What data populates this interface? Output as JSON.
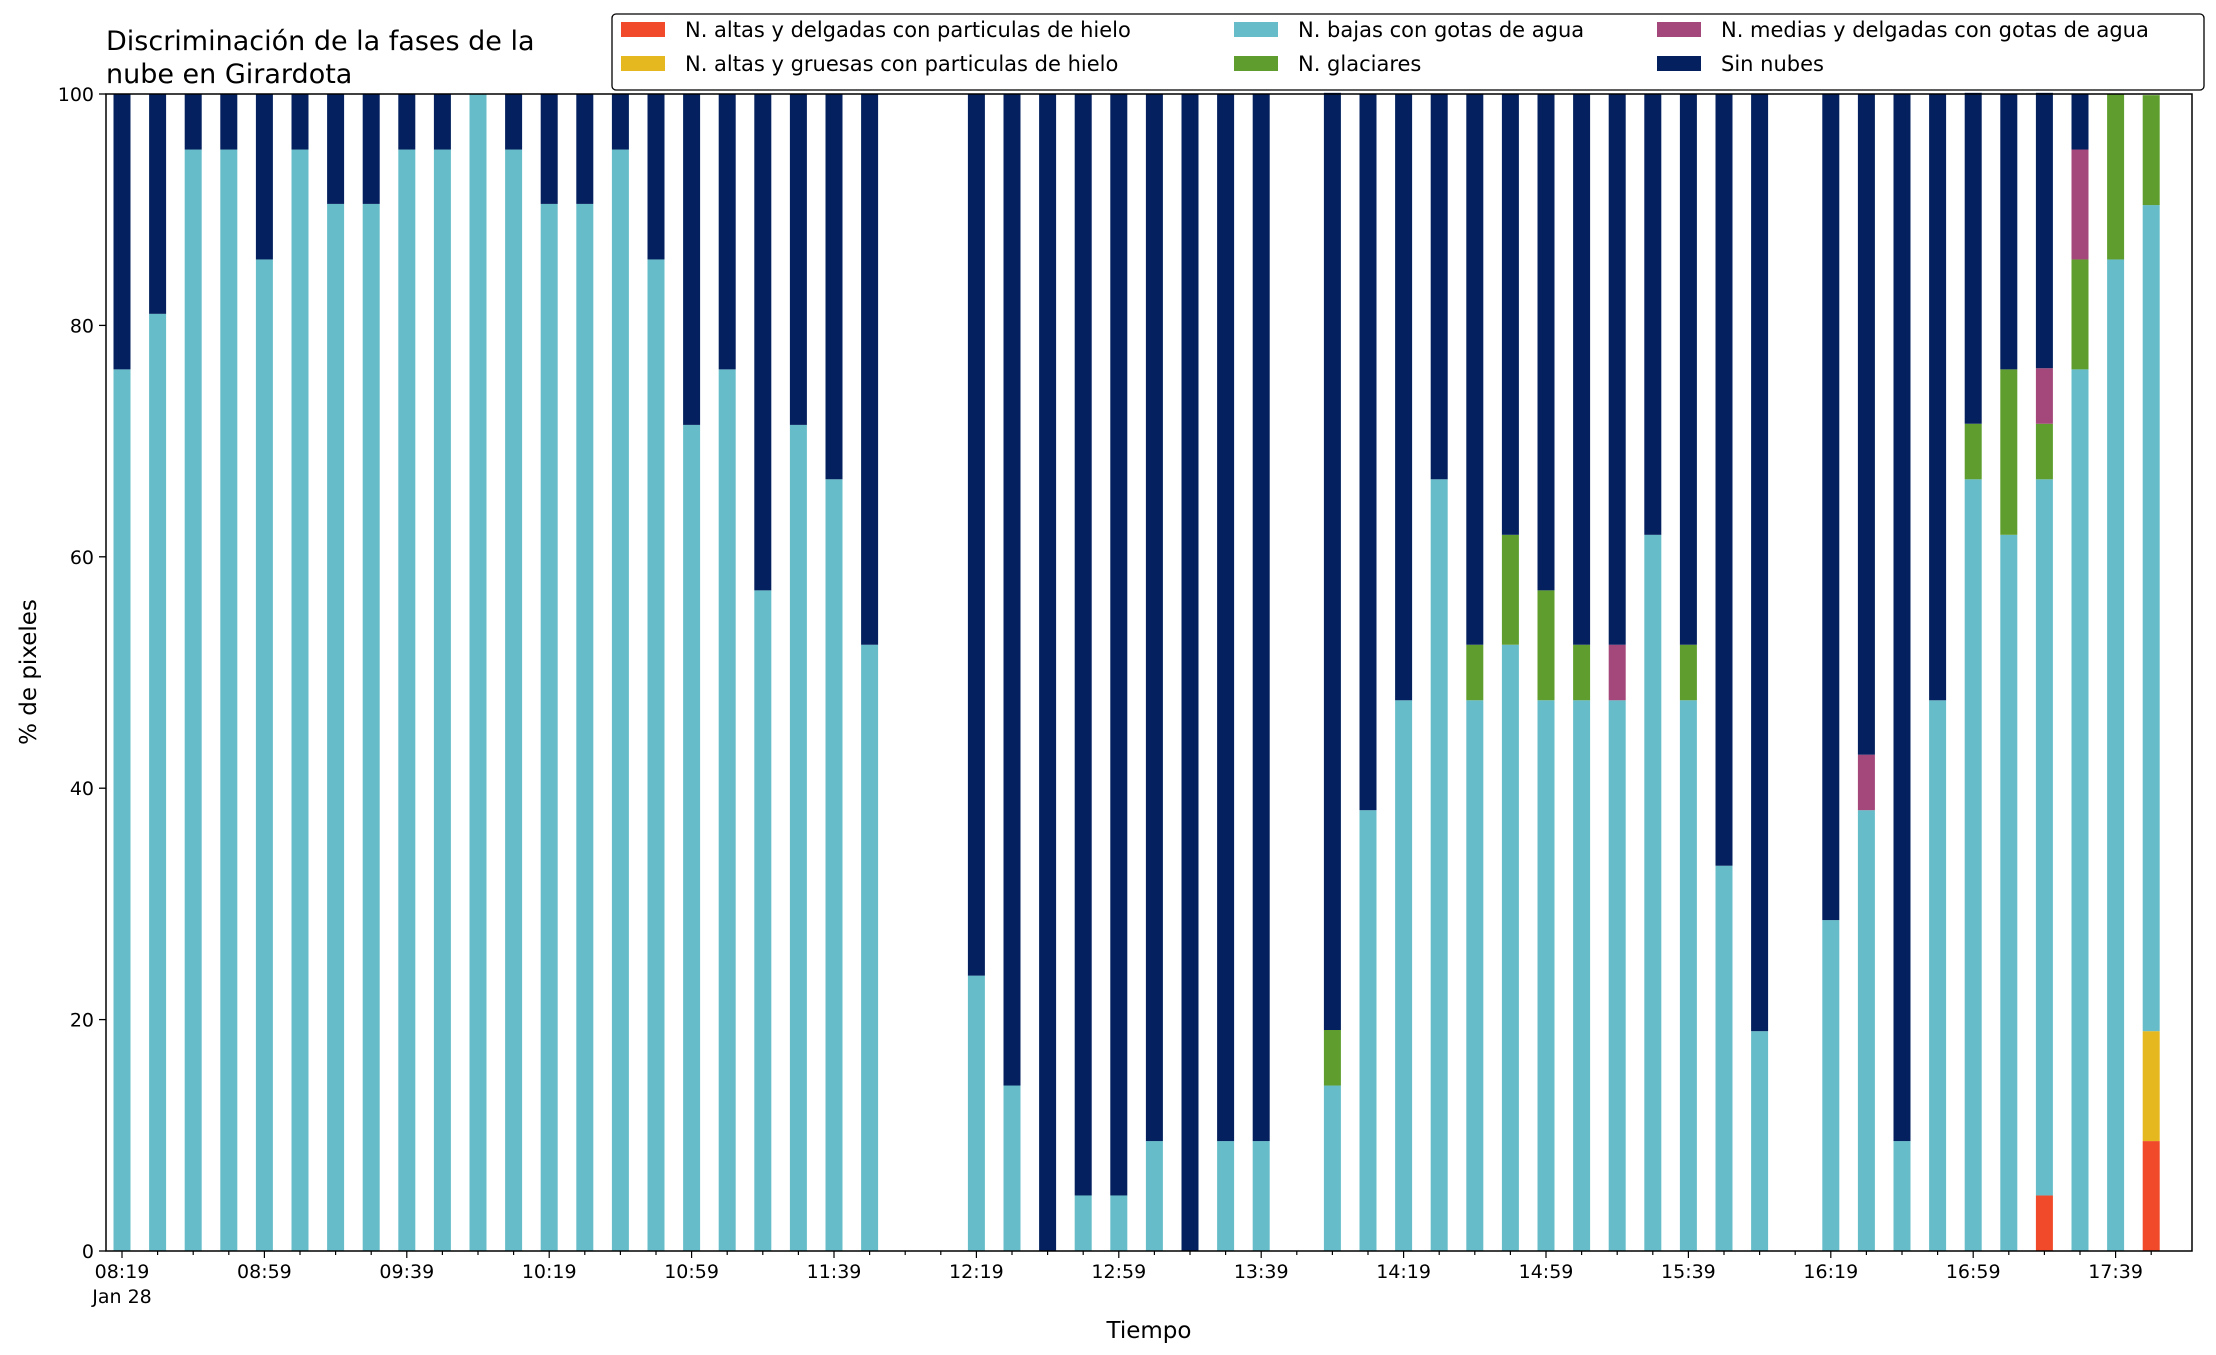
{
  "chart_data": {
    "type": "bar",
    "stacked": true,
    "title_lines": [
      "Discriminación de la fases de la",
      "nube en Girardota"
    ],
    "xlabel": "Tiempo",
    "ylabel": "% de pixeles",
    "ylim": [
      0,
      100
    ],
    "yticks": [
      0,
      20,
      40,
      60,
      80,
      100
    ],
    "grid": false,
    "legend_position": "top-right",
    "x_date_label": "Jan 28",
    "x_tick_labels": [
      {
        "index": 0,
        "label": "08:19"
      },
      {
        "index": 4,
        "label": "08:59"
      },
      {
        "index": 8,
        "label": "09:39"
      },
      {
        "index": 12,
        "label": "10:19"
      },
      {
        "index": 16,
        "label": "10:59"
      },
      {
        "index": 20,
        "label": "11:39"
      },
      {
        "index": 24,
        "label": "12:19"
      },
      {
        "index": 28,
        "label": "12:59"
      },
      {
        "index": 32,
        "label": "13:39"
      },
      {
        "index": 36,
        "label": "14:19"
      },
      {
        "index": 40,
        "label": "14:59"
      },
      {
        "index": 44,
        "label": "15:39"
      },
      {
        "index": 48,
        "label": "16:19"
      },
      {
        "index": 52,
        "label": "16:59"
      },
      {
        "index": 56,
        "label": "17:39"
      }
    ],
    "categories": [
      "08:19",
      "08:29",
      "08:39",
      "08:49",
      "08:59",
      "09:09",
      "09:19",
      "09:29",
      "09:39",
      "09:49",
      "09:59",
      "10:09",
      "10:19",
      "10:29",
      "10:39",
      "10:49",
      "10:59",
      "11:09",
      "11:19",
      "11:29",
      "11:39",
      "11:49",
      "11:59",
      "12:09",
      "12:19",
      "12:29",
      "12:39",
      "12:49",
      "12:59",
      "13:09",
      "13:19",
      "13:29",
      "13:39",
      "13:49",
      "13:59",
      "14:09",
      "14:19",
      "14:29",
      "14:39",
      "14:49",
      "14:59",
      "15:09",
      "15:19",
      "15:29",
      "15:39",
      "15:49",
      "15:59",
      "16:09",
      "16:19",
      "16:29",
      "16:39",
      "16:49",
      "16:59",
      "17:09",
      "17:19",
      "17:29",
      "17:39",
      "17:49"
    ],
    "series": [
      {
        "name": "N. altas y delgadas con particulas de hielo",
        "color": "#f04a2a",
        "values": [
          0,
          0,
          0,
          0,
          0,
          0,
          0,
          0,
          0,
          0,
          0,
          0,
          0,
          0,
          0,
          0,
          0,
          0,
          0,
          0,
          0,
          0,
          null,
          null,
          0,
          0,
          0,
          0,
          0,
          0,
          0,
          0,
          0,
          null,
          0,
          0,
          0,
          0,
          0,
          0,
          0,
          0,
          0,
          0,
          0,
          0,
          0,
          null,
          0,
          0,
          0,
          0,
          0,
          0,
          4.8,
          0,
          0,
          9.5
        ]
      },
      {
        "name": "N. altas y gruesas con particulas de hielo",
        "color": "#e6b81f",
        "values": [
          0,
          0,
          0,
          0,
          0,
          0,
          0,
          0,
          0,
          0,
          0,
          0,
          0,
          0,
          0,
          0,
          0,
          0,
          0,
          0,
          0,
          0,
          null,
          null,
          0,
          0,
          0,
          0,
          0,
          0,
          0,
          0,
          0,
          null,
          0,
          0,
          0,
          0,
          0,
          0,
          0,
          0,
          0,
          0,
          0,
          0,
          0,
          null,
          0,
          0,
          0,
          0,
          0,
          0,
          0,
          0,
          0,
          9.5
        ]
      },
      {
        "name": "N. bajas con gotas de agua",
        "color": "#66bdc9",
        "values": [
          76.2,
          81.0,
          95.2,
          95.2,
          85.7,
          95.2,
          90.5,
          90.5,
          95.2,
          95.2,
          100,
          95.2,
          90.5,
          90.5,
          95.2,
          85.7,
          71.4,
          76.2,
          57.1,
          71.4,
          66.7,
          52.4,
          null,
          null,
          23.8,
          14.3,
          0,
          4.8,
          4.8,
          9.5,
          0,
          9.5,
          9.5,
          null,
          14.3,
          38.1,
          47.6,
          66.7,
          47.6,
          52.4,
          47.6,
          47.6,
          47.6,
          61.9,
          47.6,
          33.3,
          19.0,
          null,
          28.6,
          38.1,
          9.5,
          47.6,
          66.7,
          61.9,
          61.9,
          76.2,
          85.7,
          71.4
        ]
      },
      {
        "name": "N. glaciares",
        "color": "#5f9e2e",
        "values": [
          0,
          0,
          0,
          0,
          0,
          0,
          0,
          0,
          0,
          0,
          0,
          0,
          0,
          0,
          0,
          0,
          0,
          0,
          0,
          0,
          0,
          0,
          null,
          null,
          0,
          0,
          0,
          0,
          0,
          0,
          0,
          0,
          0,
          null,
          4.8,
          0,
          0,
          0,
          4.8,
          9.5,
          9.5,
          4.8,
          0,
          0,
          4.8,
          0,
          0,
          null,
          0,
          0,
          0,
          0,
          4.8,
          14.3,
          4.8,
          9.5,
          14.3,
          9.5
        ]
      },
      {
        "name": "N. medias y delgadas con gotas de agua",
        "color": "#a4477a",
        "values": [
          0,
          0,
          0,
          0,
          0,
          0,
          0,
          0,
          0,
          0,
          0,
          0,
          0,
          0,
          0,
          0,
          0,
          0,
          0,
          0,
          0,
          0,
          null,
          null,
          0,
          0,
          0,
          0,
          0,
          0,
          0,
          0,
          0,
          null,
          0,
          0,
          0,
          0,
          0,
          0,
          0,
          0,
          4.8,
          0,
          0,
          0,
          0,
          null,
          0,
          4.8,
          0,
          0,
          0,
          0,
          4.8,
          9.5,
          0,
          0
        ]
      },
      {
        "name": "Sin nubes",
        "color": "#04205f",
        "values": [
          23.8,
          19.0,
          4.8,
          4.8,
          14.3,
          4.8,
          9.5,
          9.5,
          4.8,
          4.8,
          0,
          4.8,
          9.5,
          9.5,
          4.8,
          14.3,
          28.6,
          23.8,
          42.9,
          28.6,
          33.3,
          47.6,
          null,
          null,
          76.2,
          85.7,
          100,
          95.2,
          95.2,
          90.5,
          100,
          90.5,
          90.5,
          null,
          81.0,
          61.9,
          52.4,
          33.3,
          47.6,
          38.1,
          42.9,
          47.6,
          47.6,
          38.1,
          47.6,
          66.7,
          81.0,
          null,
          71.4,
          57.1,
          90.5,
          52.4,
          28.6,
          23.8,
          23.8,
          4.8,
          0,
          0
        ]
      }
    ]
  }
}
